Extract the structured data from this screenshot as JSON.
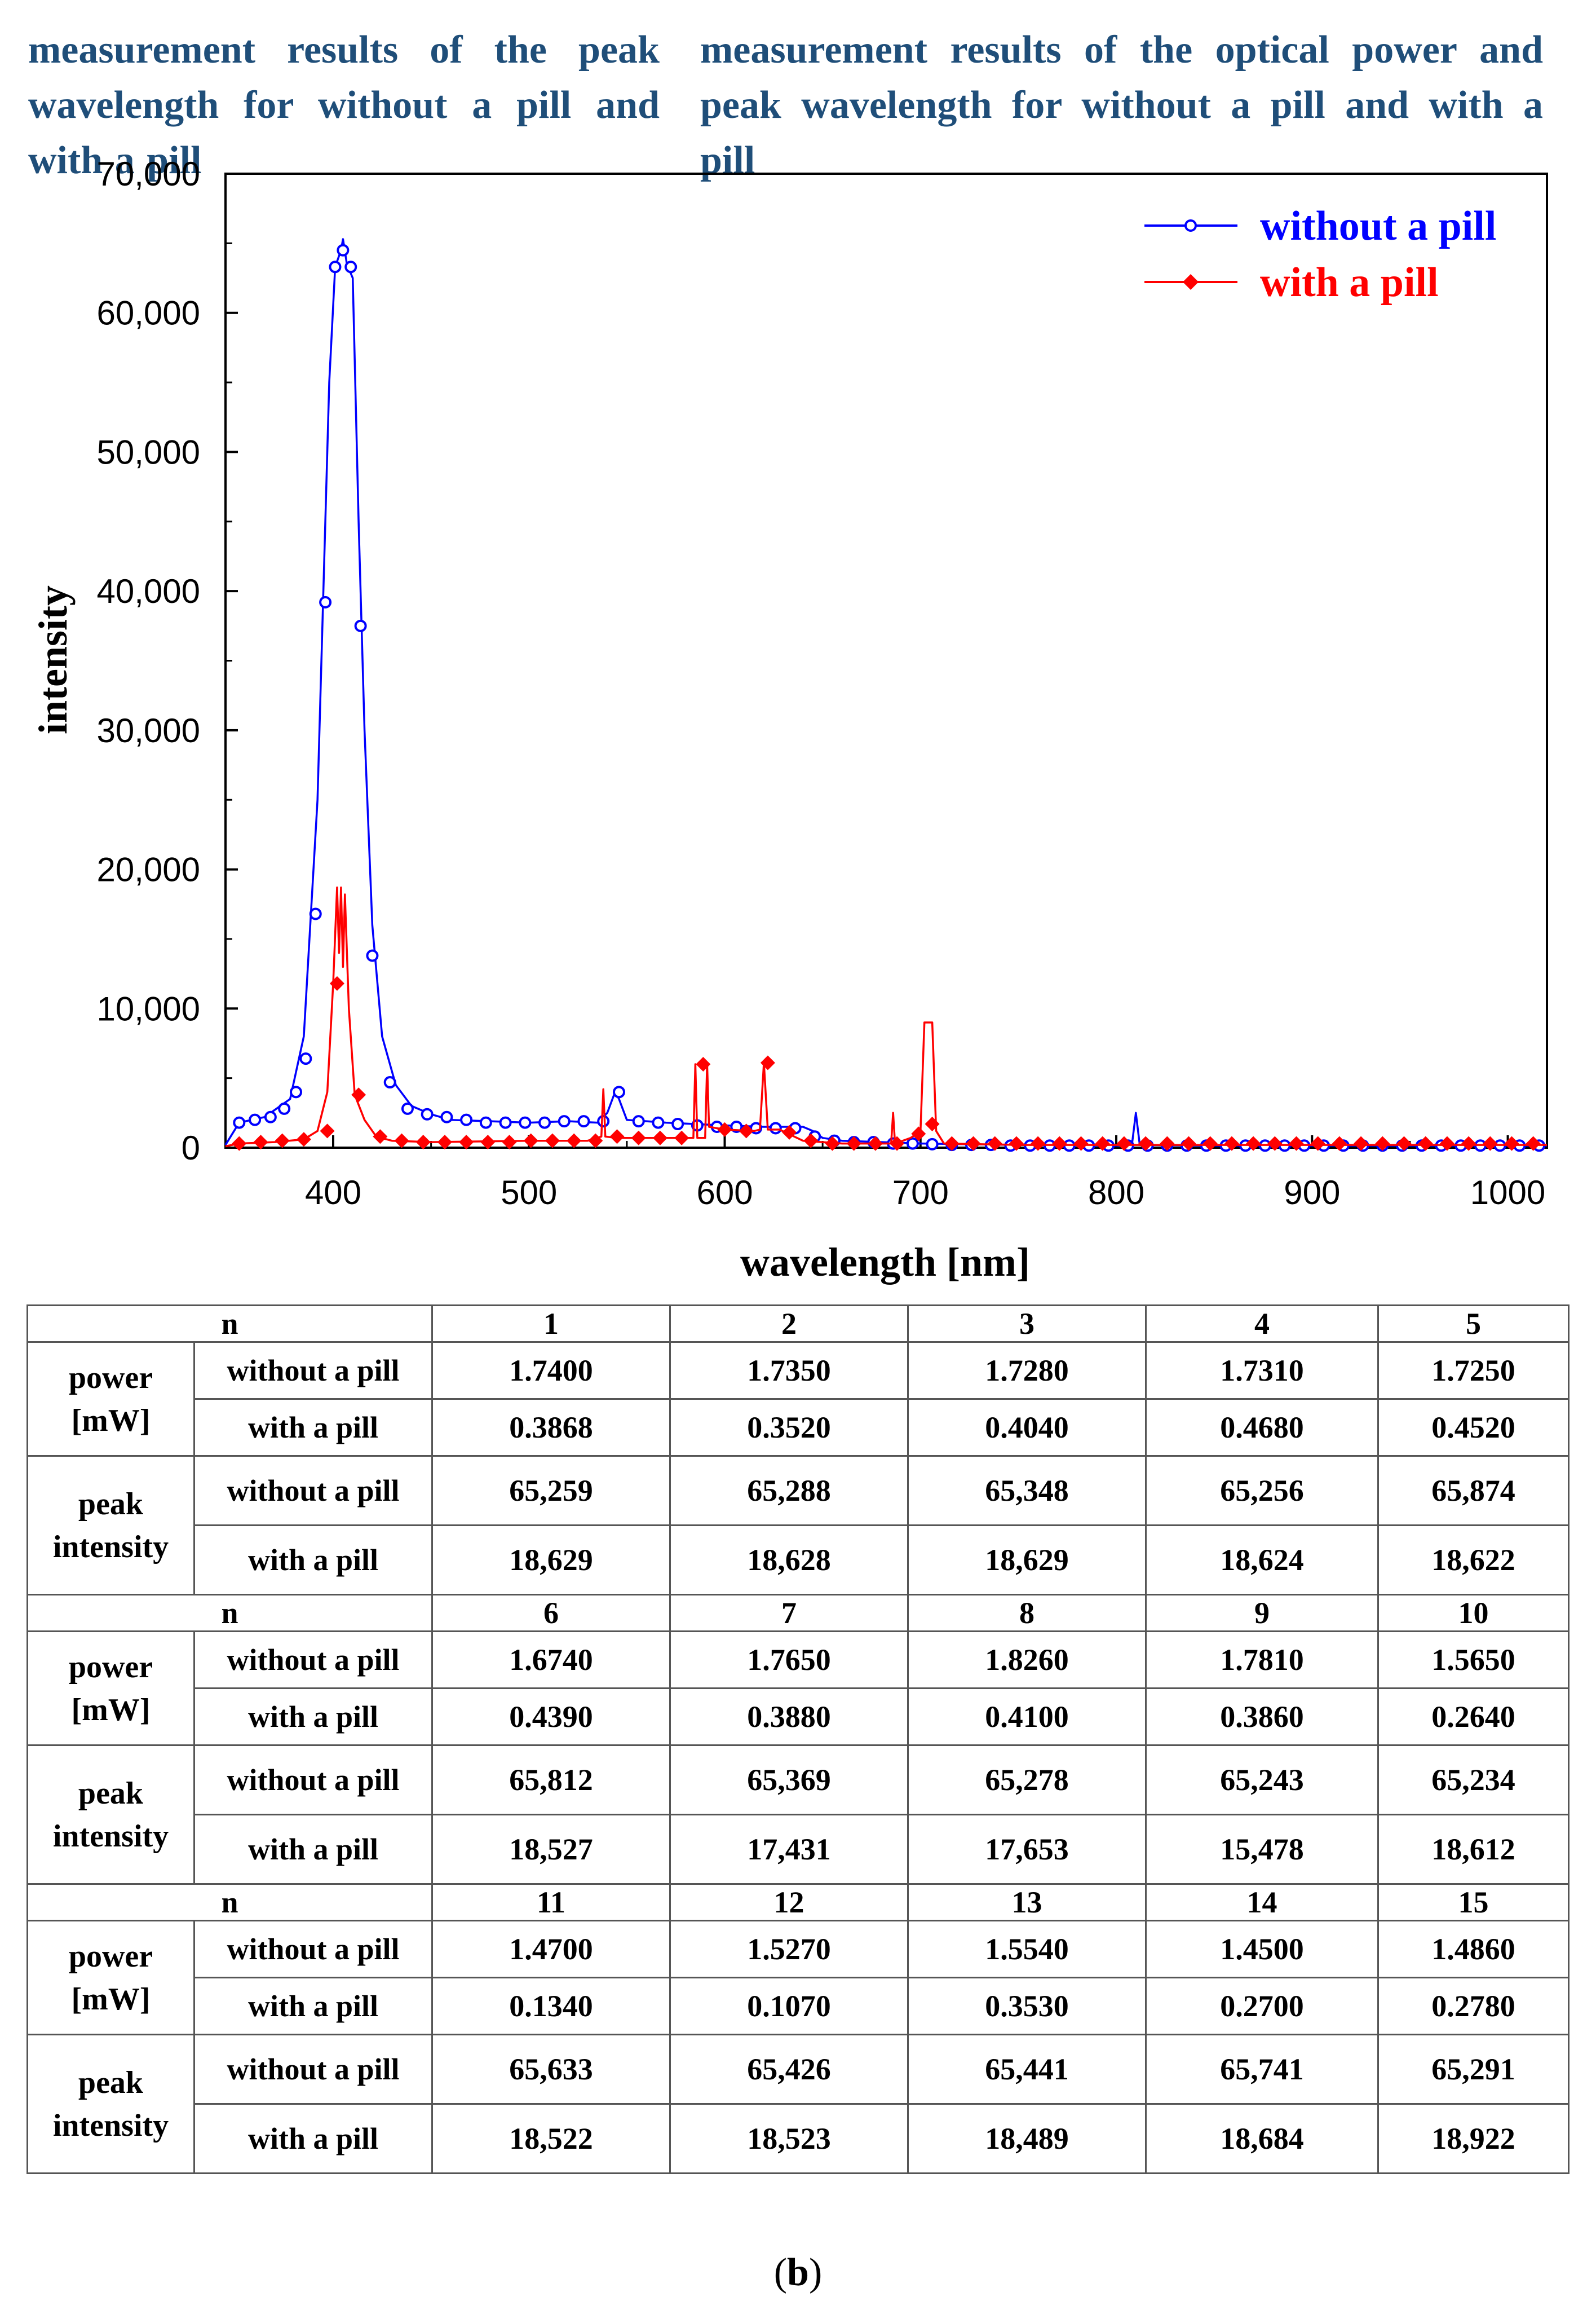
{
  "heading": {
    "left": "measurement results of the peak wavelength for without a pill and with a pill",
    "right": "measurement results of the optical power and peak wavelength for without a pill and with a pill"
  },
  "chart_data": {
    "type": "line",
    "xlabel": "wavelength [nm]",
    "ylabel": "intensity",
    "xlim": [
      345,
      1020
    ],
    "ylim": [
      0,
      70000
    ],
    "x_ticks": [
      400,
      500,
      600,
      700,
      800,
      900,
      1000
    ],
    "x_tick_labels": [
      "400",
      "500",
      "600",
      "700",
      "800",
      "900",
      "1000"
    ],
    "y_ticks": [
      0,
      10000,
      20000,
      30000,
      40000,
      50000,
      60000,
      70000
    ],
    "y_tick_labels": [
      "0",
      "10,000",
      "20,000",
      "30,000",
      "40,000",
      "50,000",
      "60,000",
      "70,000"
    ],
    "legend_position": "top-right",
    "series": [
      {
        "name": "without a pill",
        "color": "#0000FF",
        "marker": "open-circle",
        "line": [
          [
            345,
            200
          ],
          [
            352,
            1800
          ],
          [
            365,
            2200
          ],
          [
            378,
            3500
          ],
          [
            385,
            8000
          ],
          [
            392,
            25000
          ],
          [
            398,
            55000
          ],
          [
            401,
            63300
          ],
          [
            404,
            64500
          ],
          [
            405,
            65300
          ],
          [
            407,
            63500
          ],
          [
            410,
            62500
          ],
          [
            413,
            45000
          ],
          [
            416,
            30000
          ],
          [
            420,
            16000
          ],
          [
            425,
            8000
          ],
          [
            432,
            4500
          ],
          [
            440,
            3000
          ],
          [
            450,
            2400
          ],
          [
            460,
            2000
          ],
          [
            480,
            1900
          ],
          [
            500,
            1800
          ],
          [
            520,
            1900
          ],
          [
            535,
            1800
          ],
          [
            540,
            2500
          ],
          [
            544,
            4000
          ],
          [
            546,
            3500
          ],
          [
            550,
            2000
          ],
          [
            570,
            1800
          ],
          [
            600,
            1600
          ],
          [
            620,
            1500
          ],
          [
            640,
            1500
          ],
          [
            645,
            1200
          ],
          [
            650,
            700
          ],
          [
            660,
            500
          ],
          [
            680,
            400
          ],
          [
            700,
            300
          ],
          [
            750,
            200
          ],
          [
            800,
            150
          ],
          [
            808,
            200
          ],
          [
            810,
            2500
          ],
          [
            812,
            200
          ],
          [
            850,
            150
          ],
          [
            900,
            150
          ],
          [
            1000,
            150
          ],
          [
            1020,
            150
          ]
        ],
        "markers": [
          [
            352,
            1800
          ],
          [
            360,
            2000
          ],
          [
            368,
            2200
          ],
          [
            375,
            2800
          ],
          [
            381,
            4000
          ],
          [
            386,
            6400
          ],
          [
            391,
            16800
          ],
          [
            396,
            39200
          ],
          [
            401,
            63300
          ],
          [
            405,
            64500
          ],
          [
            409,
            63300
          ],
          [
            414,
            37500
          ],
          [
            420,
            13800
          ],
          [
            429,
            4700
          ],
          [
            438,
            2800
          ],
          [
            448,
            2400
          ],
          [
            458,
            2200
          ],
          [
            468,
            2000
          ],
          [
            478,
            1800
          ],
          [
            488,
            1800
          ],
          [
            498,
            1800
          ],
          [
            508,
            1800
          ],
          [
            518,
            1900
          ],
          [
            528,
            1900
          ],
          [
            538,
            1900
          ],
          [
            546,
            4000
          ],
          [
            556,
            1900
          ],
          [
            566,
            1800
          ],
          [
            576,
            1700
          ],
          [
            586,
            1600
          ],
          [
            596,
            1500
          ],
          [
            606,
            1500
          ],
          [
            616,
            1400
          ],
          [
            626,
            1400
          ],
          [
            636,
            1400
          ],
          [
            646,
            800
          ],
          [
            656,
            500
          ],
          [
            666,
            400
          ],
          [
            676,
            400
          ],
          [
            686,
            300
          ],
          [
            696,
            300
          ],
          [
            706,
            250
          ],
          [
            716,
            200
          ],
          [
            726,
            200
          ],
          [
            736,
            200
          ],
          [
            746,
            150
          ],
          [
            756,
            150
          ],
          [
            766,
            150
          ],
          [
            776,
            150
          ],
          [
            786,
            150
          ],
          [
            796,
            150
          ],
          [
            806,
            150
          ],
          [
            816,
            150
          ],
          [
            826,
            150
          ],
          [
            836,
            150
          ],
          [
            846,
            150
          ],
          [
            856,
            150
          ],
          [
            866,
            150
          ],
          [
            876,
            150
          ],
          [
            886,
            150
          ],
          [
            896,
            150
          ],
          [
            906,
            150
          ],
          [
            916,
            150
          ],
          [
            926,
            150
          ],
          [
            936,
            150
          ],
          [
            946,
            150
          ],
          [
            956,
            150
          ],
          [
            966,
            150
          ],
          [
            976,
            150
          ],
          [
            986,
            150
          ],
          [
            996,
            150
          ],
          [
            1006,
            150
          ],
          [
            1016,
            150
          ]
        ]
      },
      {
        "name": "with a pill",
        "color": "#FF0000",
        "marker": "diamond",
        "line": [
          [
            345,
            100
          ],
          [
            352,
            300
          ],
          [
            370,
            400
          ],
          [
            385,
            600
          ],
          [
            392,
            1200
          ],
          [
            397,
            4000
          ],
          [
            400,
            11800
          ],
          [
            402,
            18700
          ],
          [
            403,
            14000
          ],
          [
            404,
            18700
          ],
          [
            405,
            13000
          ],
          [
            406,
            18200
          ],
          [
            408,
            10000
          ],
          [
            411,
            3800
          ],
          [
            416,
            2000
          ],
          [
            422,
            800
          ],
          [
            430,
            500
          ],
          [
            450,
            400
          ],
          [
            500,
            500
          ],
          [
            530,
            500
          ],
          [
            537,
            800
          ],
          [
            538,
            4200
          ],
          [
            539,
            800
          ],
          [
            545,
            700
          ],
          [
            580,
            700
          ],
          [
            584,
            700
          ],
          [
            585,
            6000
          ],
          [
            586,
            700
          ],
          [
            590,
            700
          ],
          [
            591,
            6000
          ],
          [
            592,
            1500
          ],
          [
            600,
            1300
          ],
          [
            615,
            1200
          ],
          [
            618,
            1300
          ],
          [
            620,
            6100
          ],
          [
            622,
            1300
          ],
          [
            628,
            1300
          ],
          [
            640,
            500
          ],
          [
            660,
            300
          ],
          [
            685,
            300
          ],
          [
            686,
            2500
          ],
          [
            687,
            300
          ],
          [
            695,
            700
          ],
          [
            700,
            1200
          ],
          [
            702,
            9000
          ],
          [
            706,
            9000
          ],
          [
            708,
            1200
          ],
          [
            712,
            300
          ],
          [
            750,
            200
          ],
          [
            800,
            200
          ],
          [
            900,
            200
          ],
          [
            1020,
            200
          ]
        ],
        "markers": [
          [
            352,
            300
          ],
          [
            363,
            400
          ],
          [
            374,
            500
          ],
          [
            385,
            600
          ],
          [
            397,
            1200
          ],
          [
            402,
            11800
          ],
          [
            413,
            3800
          ],
          [
            424,
            800
          ],
          [
            435,
            500
          ],
          [
            446,
            400
          ],
          [
            457,
            400
          ],
          [
            468,
            400
          ],
          [
            479,
            400
          ],
          [
            490,
            400
          ],
          [
            501,
            500
          ],
          [
            512,
            500
          ],
          [
            523,
            500
          ],
          [
            534,
            500
          ],
          [
            545,
            800
          ],
          [
            556,
            700
          ],
          [
            567,
            700
          ],
          [
            578,
            700
          ],
          [
            589,
            6000
          ],
          [
            600,
            1300
          ],
          [
            611,
            1200
          ],
          [
            622,
            6100
          ],
          [
            633,
            1100
          ],
          [
            644,
            500
          ],
          [
            655,
            300
          ],
          [
            666,
            300
          ],
          [
            677,
            300
          ],
          [
            688,
            300
          ],
          [
            699,
            1000
          ],
          [
            706,
            1700
          ],
          [
            716,
            300
          ],
          [
            727,
            300
          ],
          [
            738,
            300
          ],
          [
            749,
            300
          ],
          [
            760,
            300
          ],
          [
            771,
            300
          ],
          [
            782,
            300
          ],
          [
            793,
            300
          ],
          [
            804,
            300
          ],
          [
            815,
            300
          ],
          [
            826,
            300
          ],
          [
            837,
            300
          ],
          [
            848,
            300
          ],
          [
            859,
            300
          ],
          [
            870,
            300
          ],
          [
            881,
            300
          ],
          [
            892,
            300
          ],
          [
            903,
            300
          ],
          [
            914,
            300
          ],
          [
            925,
            300
          ],
          [
            936,
            300
          ],
          [
            947,
            300
          ],
          [
            958,
            300
          ],
          [
            969,
            300
          ],
          [
            980,
            300
          ],
          [
            991,
            300
          ],
          [
            1002,
            300
          ],
          [
            1013,
            300
          ]
        ]
      }
    ]
  },
  "table": {
    "group_labels": {
      "n": "n",
      "power": "power",
      "power_unit": "[mW]",
      "peak": "peak",
      "intensity": "intensity",
      "without": "without a pill",
      "with": "with a pill"
    },
    "blocks": [
      {
        "n": [
          "1",
          "2",
          "3",
          "4",
          "5"
        ],
        "power_without": [
          "1.7400",
          "1.7350",
          "1.7280",
          "1.7310",
          "1.7250"
        ],
        "power_with": [
          "0.3868",
          "0.3520",
          "0.4040",
          "0.4680",
          "0.4520"
        ],
        "peak_without": [
          "65,259",
          "65,288",
          "65,348",
          "65,256",
          "65,874"
        ],
        "peak_with": [
          "18,629",
          "18,628",
          "18,629",
          "18,624",
          "18,622"
        ]
      },
      {
        "n": [
          "6",
          "7",
          "8",
          "9",
          "10"
        ],
        "power_without": [
          "1.6740",
          "1.7650",
          "1.8260",
          "1.7810",
          "1.5650"
        ],
        "power_with": [
          "0.4390",
          "0.3880",
          "0.4100",
          "0.3860",
          "0.2640"
        ],
        "peak_without": [
          "65,812",
          "65,369",
          "65,278",
          "65,243",
          "65,234"
        ],
        "peak_with": [
          "18,527",
          "17,431",
          "17,653",
          "15,478",
          "18,612"
        ]
      },
      {
        "n": [
          "11",
          "12",
          "13",
          "14",
          "15"
        ],
        "power_without": [
          "1.4700",
          "1.5270",
          "1.5540",
          "1.4500",
          "1.4860"
        ],
        "power_with": [
          "0.1340",
          "0.1070",
          "0.3530",
          "0.2700",
          "0.2780"
        ],
        "peak_without": [
          "65,633",
          "65,426",
          "65,441",
          "65,741",
          "65,291"
        ],
        "peak_with": [
          "18,522",
          "18,523",
          "18,489",
          "18,684",
          "18,922"
        ]
      }
    ]
  },
  "caption": {
    "open": "(",
    "letter": "b",
    "close": ")"
  }
}
